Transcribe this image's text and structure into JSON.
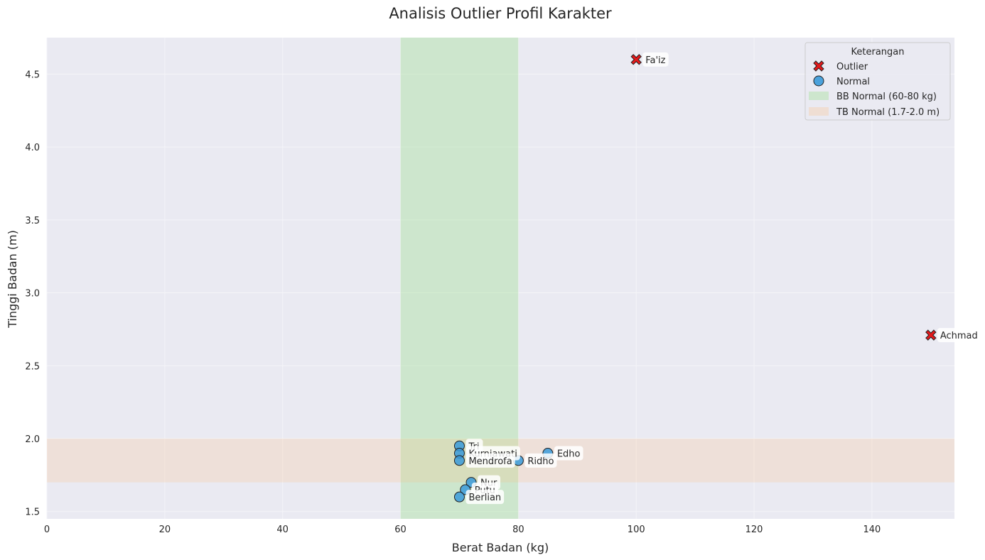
{
  "chart_data": {
    "type": "scatter",
    "title": "Analisis Outlier Profil Karakter",
    "xlabel": "Berat Badan (kg)",
    "ylabel": "Tinggi Badan (m)",
    "xlim": [
      0,
      154
    ],
    "ylim": [
      1.45,
      4.75
    ],
    "xticks": [
      0,
      20,
      40,
      60,
      80,
      100,
      120,
      140
    ],
    "yticks": [
      1.5,
      2.0,
      2.5,
      3.0,
      3.5,
      4.0,
      4.5
    ],
    "xtick_labels": [
      "0",
      "20",
      "40",
      "60",
      "80",
      "100",
      "120",
      "140"
    ],
    "ytick_labels": [
      "1.5",
      "2.0",
      "2.5",
      "3.0",
      "3.5",
      "4.0",
      "4.5"
    ],
    "grid": true,
    "legend_position": "top-right",
    "bands": [
      {
        "label": "BB Normal (60-80 kg)",
        "axis": "x",
        "range": [
          60,
          80
        ],
        "color": "#98df8a"
      },
      {
        "label": "TB Normal (1.7-2.0 m)",
        "axis": "y",
        "range": [
          1.7,
          2.0
        ],
        "color": "#ffbb78"
      }
    ],
    "series": [
      {
        "name": "Outlier",
        "marker": "X",
        "color": "#e41a1c",
        "points": [
          {
            "label": "Fa'iz",
            "x": 100,
            "y": 4.6
          },
          {
            "label": "Achmad",
            "x": 150,
            "y": 2.71
          }
        ]
      },
      {
        "name": "Normal",
        "marker": "o",
        "color": "#3a9ad9",
        "points": [
          {
            "label": "Tri",
            "x": 70,
            "y": 1.95
          },
          {
            "label": "Kurniawati",
            "x": 70,
            "y": 1.9
          },
          {
            "label": "Mendrofa",
            "x": 70,
            "y": 1.85
          },
          {
            "label": "Ridho",
            "x": 80,
            "y": 1.85
          },
          {
            "label": "Edho",
            "x": 85,
            "y": 1.9
          },
          {
            "label": "Nur",
            "x": 72,
            "y": 1.7
          },
          {
            "label": "Putu",
            "x": 71,
            "y": 1.65
          },
          {
            "label": "Berlian",
            "x": 70,
            "y": 1.6
          }
        ]
      }
    ],
    "legend": {
      "title": "Keterangan",
      "entries": [
        "Outlier",
        "Normal",
        "BB Normal (60-80 kg)",
        "TB Normal (1.7-2.0 m)"
      ]
    },
    "colors": {
      "plot_bg": "#eaeaf2",
      "grid": "#f4f4f8",
      "outlier": "#e41a1c",
      "normal": "#3a9ad9"
    }
  }
}
